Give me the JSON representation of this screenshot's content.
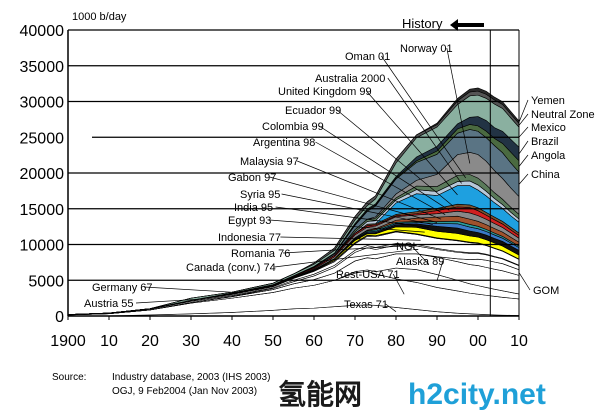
{
  "chart_data": {
    "type": "area",
    "unit_label": "1000 b/day",
    "history_label": "History",
    "ylim": [
      0,
      40000
    ],
    "yticks": [
      0,
      5000,
      10000,
      15000,
      20000,
      25000,
      30000,
      35000,
      40000
    ],
    "xlim": [
      1900,
      2010
    ],
    "xticks": [
      1900,
      1910,
      1920,
      1930,
      1940,
      1950,
      1960,
      1970,
      1980,
      1990,
      2000,
      2010
    ],
    "xtick_labels": [
      "1900",
      "10",
      "20",
      "30",
      "40",
      "50",
      "60",
      "70",
      "80",
      "90",
      "00",
      "10"
    ],
    "grid": "horizontal",
    "x": [
      1900,
      1910,
      1920,
      1930,
      1940,
      1950,
      1955,
      1960,
      1965,
      1970,
      1973,
      1975,
      1980,
      1985,
      1990,
      1995,
      1998,
      2000,
      2002,
      2004,
      2006,
      2008,
      2010
    ],
    "series": [
      {
        "name": "Texas 71",
        "color": "#ffffff",
        "values": [
          0,
          20,
          150,
          300,
          500,
          800,
          1000,
          1100,
          1300,
          1500,
          1550,
          1500,
          1200,
          900,
          600,
          400,
          300,
          250,
          200,
          150,
          120,
          100,
          80
        ]
      },
      {
        "name": "Rest-USA 71",
        "color": "#ffffff",
        "values": [
          140,
          300,
          700,
          1500,
          2000,
          2500,
          2900,
          3200,
          3700,
          4500,
          4700,
          4400,
          4000,
          3800,
          3400,
          3100,
          2900,
          2800,
          2700,
          2600,
          2500,
          2400,
          2300
        ]
      },
      {
        "name": "Alaska 89",
        "color": "#ffffff",
        "values": [
          0,
          0,
          0,
          0,
          0,
          0,
          0,
          0,
          0,
          200,
          200,
          300,
          1500,
          1800,
          1800,
          1500,
          1300,
          1200,
          1100,
          1000,
          900,
          800,
          700
        ]
      },
      {
        "name": "NGL",
        "color": "#ffffff",
        "values": [
          0,
          0,
          0,
          100,
          200,
          400,
          600,
          800,
          1000,
          1500,
          1700,
          1800,
          2000,
          2200,
          2400,
          2600,
          2700,
          2800,
          2800,
          2800,
          2800,
          2700,
          2600
        ]
      },
      {
        "name": "GOM",
        "color": "#ffffff",
        "values": [
          0,
          0,
          0,
          0,
          0,
          0,
          0,
          0,
          0,
          0,
          0,
          0,
          0,
          0,
          100,
          400,
          700,
          900,
          1000,
          1000,
          1000,
          900,
          800
        ]
      },
      {
        "name": "Canada (conv.) 74",
        "color": "#ffffff",
        "values": [
          0,
          0,
          0,
          0,
          50,
          150,
          300,
          500,
          800,
          1200,
          1400,
          1300,
          1200,
          1100,
          1000,
          900,
          850,
          800,
          750,
          700,
          650,
          600,
          550
        ]
      },
      {
        "name": "Romania 76",
        "color": "#ffffff",
        "values": [
          60,
          80,
          100,
          150,
          120,
          100,
          200,
          250,
          280,
          300,
          300,
          300,
          250,
          200,
          150,
          120,
          110,
          100,
          100,
          90,
          90,
          80,
          80
        ]
      },
      {
        "name": "Indonesia 77",
        "color": "#ffffff",
        "values": [
          0,
          0,
          50,
          100,
          150,
          150,
          250,
          400,
          500,
          900,
          1300,
          1500,
          1600,
          1400,
          1400,
          1500,
          1400,
          1300,
          1200,
          1100,
          1000,
          900,
          800
        ]
      },
      {
        "name": "Germany 67",
        "color": "#ffffff",
        "values": [
          0,
          10,
          20,
          20,
          60,
          40,
          60,
          80,
          150,
          130,
          120,
          110,
          90,
          80,
          70,
          60,
          60,
          60,
          50,
          50,
          50,
          40,
          40
        ]
      },
      {
        "name": "Austria 55",
        "color": "#ffffff",
        "values": [
          0,
          0,
          0,
          0,
          20,
          20,
          60,
          50,
          40,
          40,
          30,
          30,
          30,
          20,
          20,
          20,
          20,
          20,
          20,
          20,
          20,
          20,
          20
        ]
      },
      {
        "name": "Egypt 93",
        "color": "#ffff00",
        "values": [
          0,
          0,
          0,
          0,
          20,
          50,
          50,
          60,
          150,
          300,
          200,
          250,
          600,
          900,
          900,
          950,
          850,
          800,
          750,
          700,
          650,
          600,
          550
        ]
      },
      {
        "name": "India 95",
        "color": "#111111",
        "values": [
          0,
          0,
          0,
          0,
          0,
          0,
          0,
          0,
          50,
          150,
          150,
          200,
          300,
          500,
          700,
          750,
          700,
          650,
          650,
          650,
          650,
          650,
          650
        ]
      },
      {
        "name": "Syria 95",
        "color": "#3a7ac8",
        "values": [
          0,
          0,
          0,
          0,
          0,
          0,
          0,
          0,
          0,
          100,
          120,
          150,
          160,
          170,
          400,
          600,
          550,
          530,
          500,
          480,
          450,
          430,
          400
        ]
      },
      {
        "name": "Gabon 97",
        "color": "#2a9a9a",
        "values": [
          0,
          0,
          0,
          0,
          0,
          0,
          0,
          20,
          30,
          100,
          150,
          200,
          180,
          160,
          270,
          360,
          370,
          330,
          300,
          270,
          250,
          230,
          210
        ]
      },
      {
        "name": "Malaysia 97",
        "color": "#a0522d",
        "values": [
          0,
          0,
          0,
          0,
          0,
          0,
          0,
          20,
          20,
          30,
          100,
          150,
          280,
          450,
          620,
          700,
          740,
          700,
          660,
          630,
          600,
          570,
          540
        ]
      },
      {
        "name": "Argentina 98",
        "color": "#888888",
        "values": [
          0,
          0,
          0,
          10,
          30,
          60,
          80,
          120,
          270,
          390,
          410,
          380,
          490,
          460,
          480,
          700,
          860,
          800,
          750,
          700,
          650,
          600,
          550
        ]
      },
      {
        "name": "Colombia 99",
        "color": "#d02020",
        "values": [
          0,
          0,
          0,
          20,
          70,
          100,
          110,
          150,
          200,
          220,
          200,
          160,
          130,
          180,
          440,
          590,
          750,
          690,
          580,
          530,
          480,
          430,
          390
        ]
      },
      {
        "name": "Ecuador 99",
        "color": "#7a5030",
        "values": [
          0,
          0,
          0,
          0,
          0,
          10,
          10,
          10,
          10,
          10,
          210,
          160,
          200,
          280,
          290,
          390,
          380,
          400,
          390,
          380,
          370,
          360,
          350
        ]
      },
      {
        "name": "United Kingdom 99",
        "color": "#1ea0e0",
        "values": [
          0,
          0,
          0,
          0,
          0,
          0,
          0,
          0,
          0,
          0,
          10,
          20,
          1600,
          2500,
          1800,
          2600,
          2700,
          2500,
          2300,
          2000,
          1800,
          1600,
          1500
        ]
      },
      {
        "name": "Australia 2000",
        "color": "#b8c8d8",
        "values": [
          0,
          0,
          0,
          0,
          0,
          0,
          0,
          0,
          10,
          180,
          380,
          420,
          430,
          570,
          580,
          560,
          650,
          700,
          650,
          600,
          550,
          500,
          450
        ]
      },
      {
        "name": "Oman 01",
        "color": "#5a7a5a",
        "values": [
          0,
          0,
          0,
          0,
          0,
          0,
          0,
          0,
          0,
          330,
          290,
          340,
          290,
          500,
          690,
          870,
          900,
          960,
          900,
          800,
          750,
          700,
          650
        ]
      },
      {
        "name": "Norway 01",
        "color": "#8a8a8a",
        "values": [
          0,
          0,
          0,
          0,
          0,
          0,
          0,
          0,
          0,
          0,
          30,
          190,
          530,
          800,
          1700,
          2900,
          3100,
          3300,
          3300,
          3100,
          2900,
          2700,
          2500
        ]
      },
      {
        "name": "China",
        "color": "#5a7484",
        "values": [
          0,
          0,
          0,
          0,
          0,
          0,
          0,
          100,
          200,
          600,
          1100,
          1500,
          2100,
          2500,
          2800,
          3000,
          3200,
          3250,
          3300,
          3500,
          3600,
          3500,
          3400
        ]
      },
      {
        "name": "Angola",
        "color": "#4a6a40",
        "values": [
          0,
          0,
          0,
          0,
          0,
          0,
          0,
          0,
          10,
          100,
          150,
          140,
          150,
          220,
          470,
          600,
          700,
          750,
          900,
          1000,
          1300,
          1500,
          1600
        ]
      },
      {
        "name": "Brazil",
        "color": "#223344",
        "values": [
          0,
          0,
          0,
          0,
          0,
          10,
          10,
          80,
          90,
          160,
          170,
          180,
          190,
          550,
          650,
          700,
          1000,
          1300,
          1500,
          1500,
          1700,
          1800,
          1900
        ]
      },
      {
        "name": "Mexico",
        "color": "#8ab0a0",
        "values": [
          0,
          0,
          0,
          300,
          120,
          200,
          250,
          300,
          360,
          490,
          470,
          700,
          1900,
          2700,
          2700,
          2700,
          3000,
          3000,
          3100,
          3300,
          3200,
          3000,
          2800
        ]
      },
      {
        "name": "Neutral Zone",
        "color": "#555555",
        "values": [
          0,
          0,
          0,
          0,
          0,
          0,
          0,
          170,
          350,
          500,
          540,
          430,
          560,
          400,
          340,
          510,
          550,
          560,
          560,
          570,
          560,
          540,
          520
        ]
      },
      {
        "name": "Yemen",
        "color": "#2a2a2a",
        "values": [
          0,
          0,
          0,
          0,
          0,
          0,
          0,
          0,
          0,
          0,
          0,
          0,
          0,
          0,
          200,
          340,
          380,
          440,
          430,
          400,
          380,
          360,
          340
        ]
      }
    ]
  },
  "source_label": "Source:",
  "source_lines": [
    "Industry database, 2003 (IHS 2003)",
    "OGJ, 9 Feb2004 (Jan Nov 2003)"
  ],
  "watermark": {
    "cn": "氢能网",
    "en": "h2city.net"
  }
}
